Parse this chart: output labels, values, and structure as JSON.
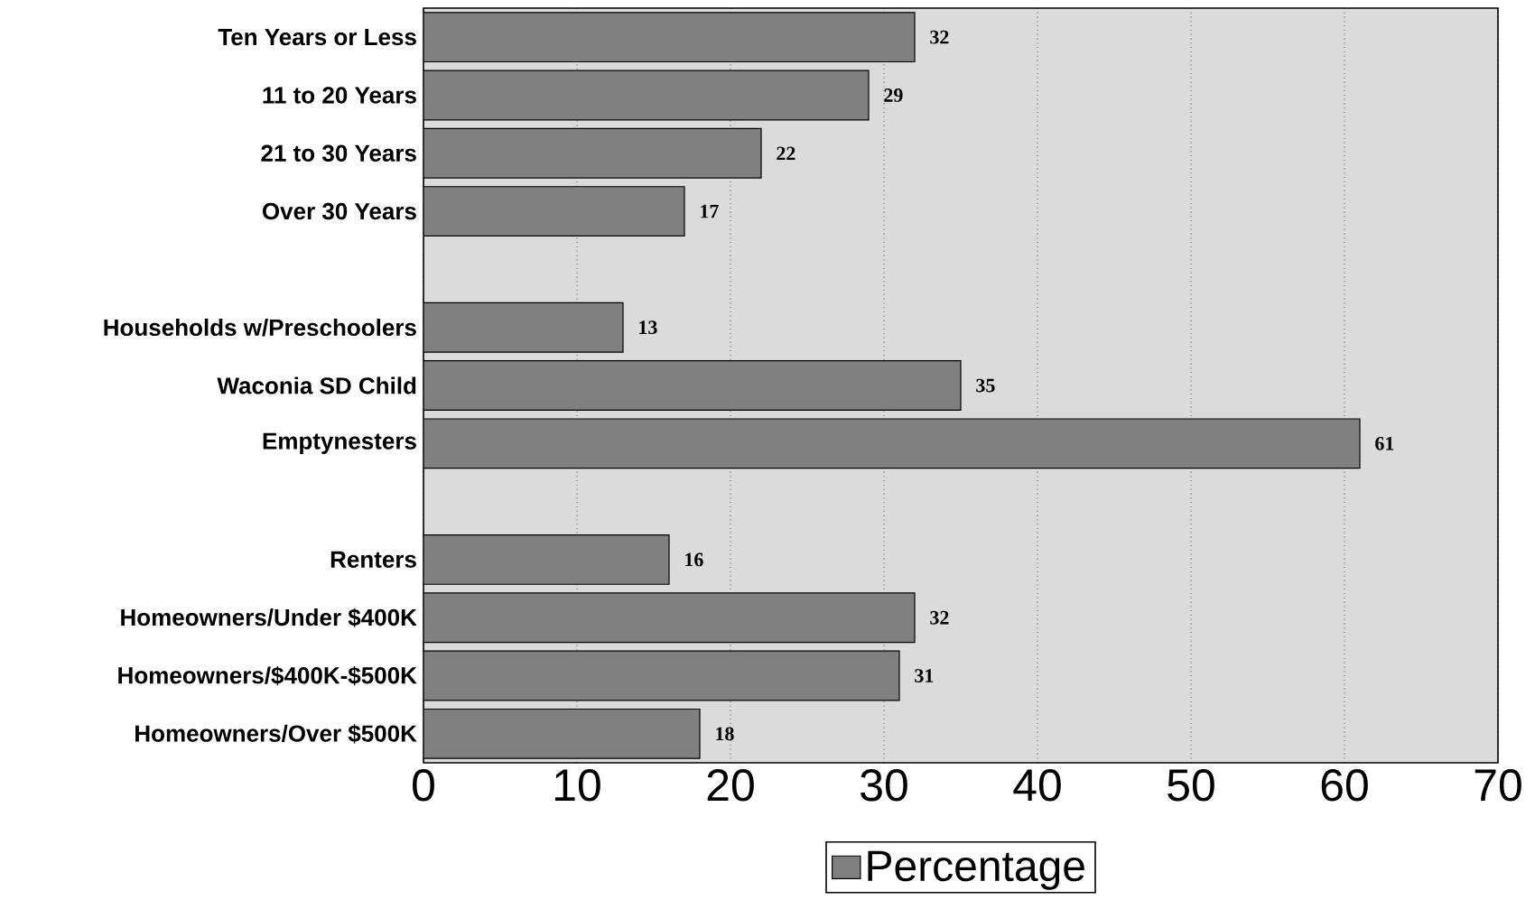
{
  "chart_data": {
    "type": "bar",
    "orientation": "horizontal",
    "categories": [
      "Ten Years or Less",
      "11 to 20 Years",
      "21 to 30 Years",
      "Over 30 Years",
      null,
      "Households w/Preschoolers",
      "Waconia SD Child",
      "Emptynesters",
      null,
      "Renters",
      "Homeowners/Under $400K",
      "Homeowners/$400K-$500K",
      "Homeowners/Over $500K"
    ],
    "series": [
      {
        "name": "Percentage",
        "color": "#808080",
        "values": [
          32,
          29,
          22,
          17,
          null,
          13,
          35,
          61,
          null,
          16,
          32,
          31,
          18
        ]
      }
    ],
    "xlim": [
      0,
      70
    ],
    "xticks": [
      0,
      10,
      20,
      30,
      40,
      50,
      60,
      70
    ],
    "grid": "x",
    "legend": "bottom",
    "data_labels": true
  }
}
